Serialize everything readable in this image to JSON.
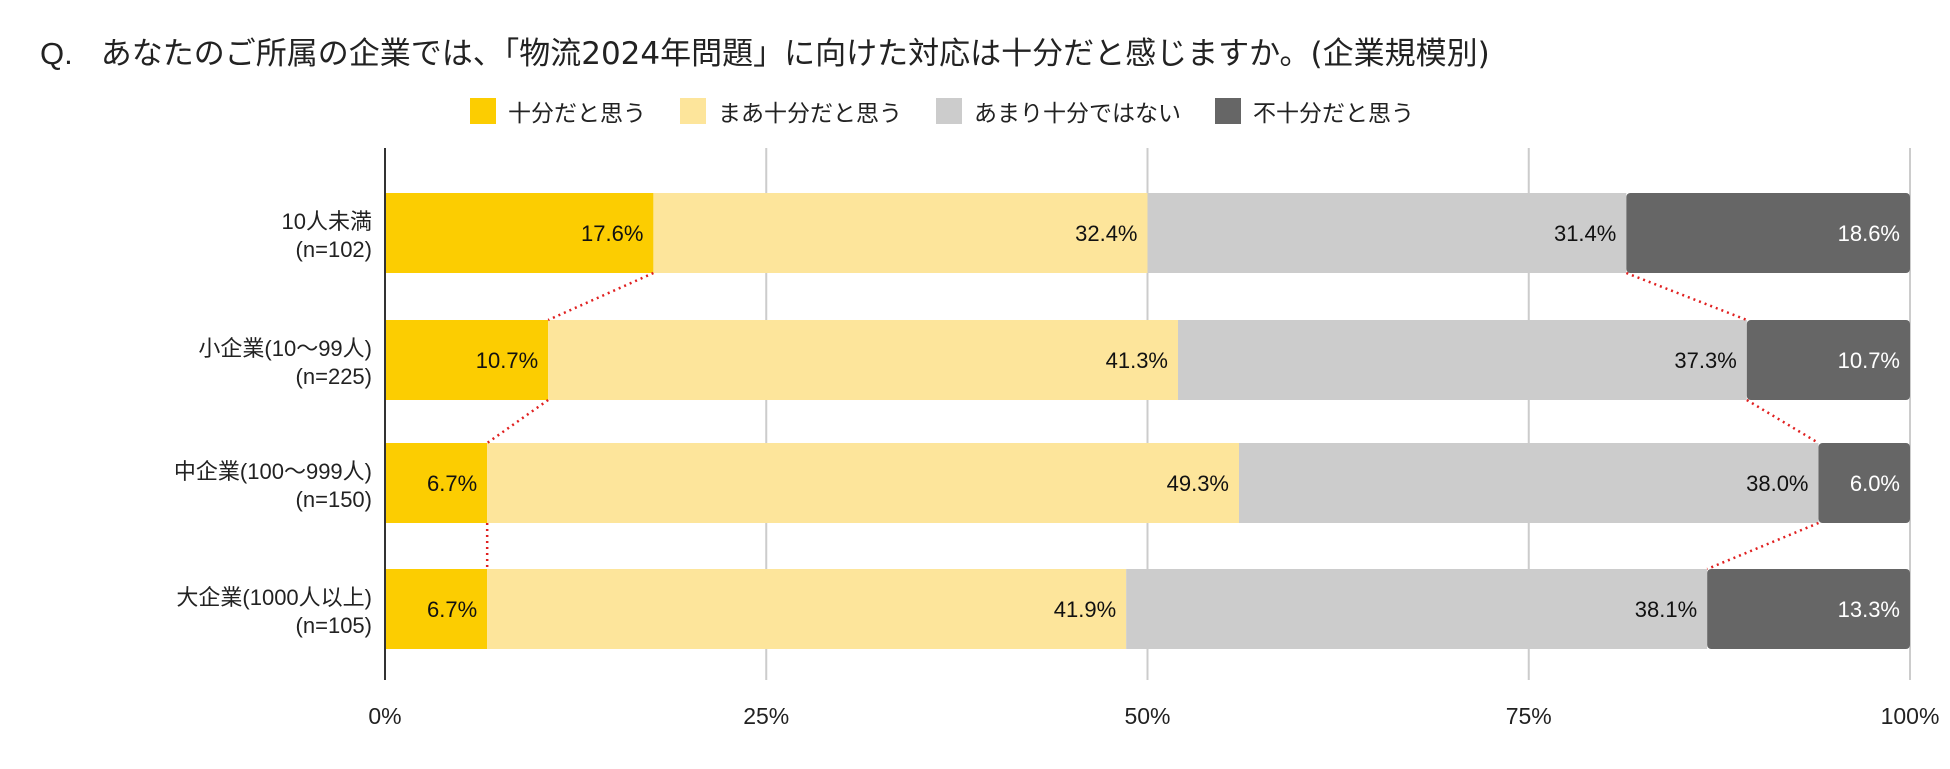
{
  "title_prefix": "Q.",
  "title": "あなたのご所属の企業では、「物流2024年問題」に向けた対応は十分だと感じますか。(企業規模別)",
  "colors": {
    "s0": "#FCCD01",
    "s1": "#FDE59B",
    "s2": "#CCCCCC",
    "s3": "#666666",
    "connector": "#E02020",
    "grid": "#CCCCCC",
    "axis": "#333333"
  },
  "chart_data": {
    "type": "bar",
    "orientation": "horizontal",
    "stacked": true,
    "title": "あなたのご所属の企業では、「物流2024年問題」に向けた対応は十分だと感じますか。(企業規模別)",
    "xlim": [
      0,
      100
    ],
    "xticks": [
      "0%",
      "25%",
      "50%",
      "75%",
      "100%"
    ],
    "xtick_values": [
      0,
      25,
      50,
      75,
      100
    ],
    "legend_position": "top-center",
    "grid": true,
    "categories": [
      {
        "name": "10人未満",
        "n": "(n=102)"
      },
      {
        "name": "小企業(10〜99人)",
        "n": "(n=225)"
      },
      {
        "name": "中企業(100〜999人)",
        "n": "(n=150)"
      },
      {
        "name": "大企業(1000人以上)",
        "n": "(n=105)"
      }
    ],
    "series": [
      {
        "name": "十分だと思う",
        "values": [
          17.6,
          10.7,
          6.7,
          6.7
        ],
        "labels": [
          "17.6%",
          "10.7%",
          "6.7%",
          "6.7%"
        ]
      },
      {
        "name": "まあ十分だと思う",
        "values": [
          32.4,
          41.3,
          49.3,
          41.9
        ],
        "labels": [
          "32.4%",
          "41.3%",
          "49.3%",
          "41.9%"
        ]
      },
      {
        "name": "あまり十分ではない",
        "values": [
          31.4,
          37.3,
          38.0,
          38.1
        ],
        "labels": [
          "31.4%",
          "37.3%",
          "38.0%",
          "38.1%"
        ]
      },
      {
        "name": "不十分だと思う",
        "values": [
          18.6,
          10.7,
          6.0,
          13.3
        ],
        "labels": [
          "18.6%",
          "10.7%",
          "6.0%",
          "13.3%"
        ]
      }
    ]
  }
}
